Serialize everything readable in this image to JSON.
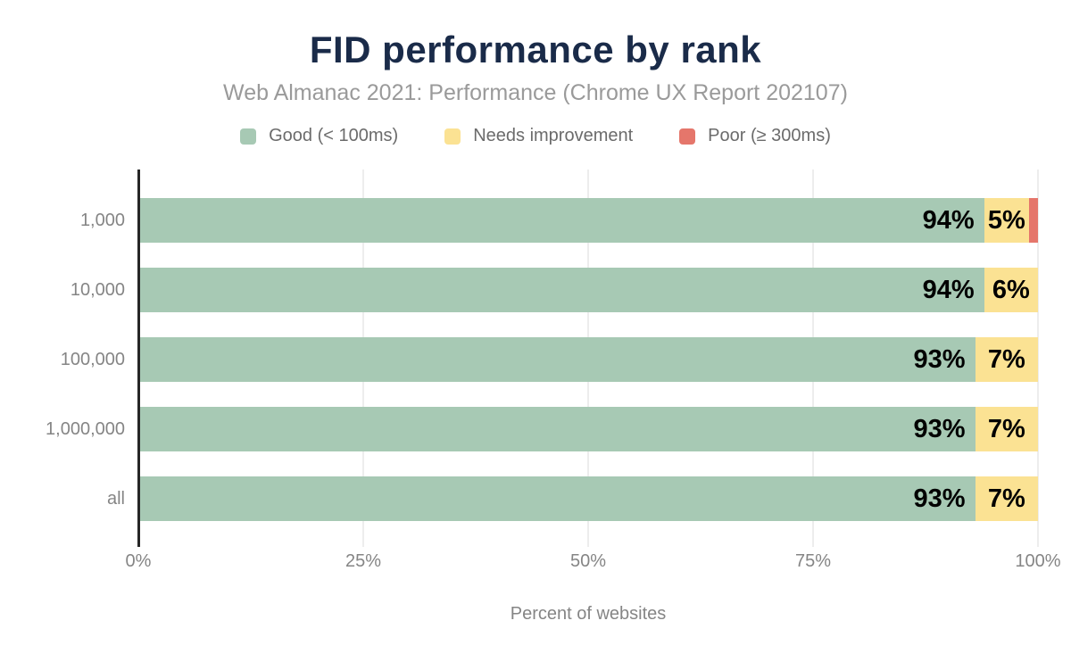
{
  "chart_data": {
    "type": "bar",
    "orientation": "horizontal",
    "stacked": true,
    "title": "FID performance by rank",
    "subtitle": "Web Almanac 2021: Performance (Chrome UX Report 202107)",
    "xlabel": "Percent of websites",
    "categories": [
      "1,000",
      "10,000",
      "100,000",
      "1,000,000",
      "all"
    ],
    "series": [
      {
        "key": "good",
        "name": "Good (< 100ms)",
        "color": "#a7c9b4",
        "values": [
          94,
          94,
          93,
          93,
          93
        ],
        "labels": [
          "94%",
          "94%",
          "93%",
          "93%",
          "93%"
        ]
      },
      {
        "key": "needs-improvement",
        "name": "Needs improvement",
        "color": "#fbe293",
        "values": [
          5,
          6,
          7,
          7,
          7
        ],
        "labels": [
          "5%",
          "6%",
          "7%",
          "7%",
          "7%"
        ]
      },
      {
        "key": "poor",
        "name": "Poor (≥ 300ms)",
        "color": "#e5766b",
        "values": [
          1,
          0,
          0,
          0,
          0
        ],
        "labels": [
          "",
          "",
          "",
          "",
          ""
        ]
      }
    ],
    "xticks": [
      {
        "label": "0%",
        "value": 0
      },
      {
        "label": "25%",
        "value": 25
      },
      {
        "label": "50%",
        "value": 50
      },
      {
        "label": "75%",
        "value": 75
      },
      {
        "label": "100%",
        "value": 100
      }
    ],
    "xlim": [
      0,
      100
    ],
    "grid": true,
    "legend_position": "top"
  },
  "colors": {
    "background": "#ffffff",
    "title": "#1a2b49",
    "subtitle": "#9a9a9a",
    "legend_text": "#6b6b6b",
    "axis_text": "#858585",
    "axis_line": "#262626",
    "gridline": "#ededed",
    "bar_label": "#000000"
  }
}
